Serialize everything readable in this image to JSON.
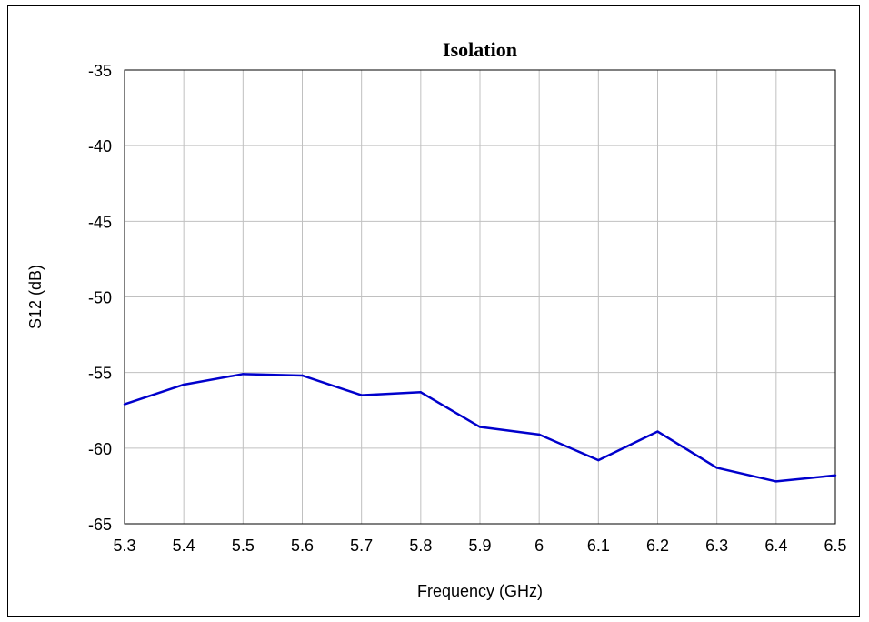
{
  "chart_data": {
    "type": "line",
    "title": "Isolation",
    "xlabel": "Frequency (GHz)",
    "ylabel": "S12 (dB)",
    "xlim": [
      5.3,
      6.5
    ],
    "ylim": [
      -65,
      -35
    ],
    "grid": true,
    "x_ticks": [
      "5.3",
      "5.4",
      "5.5",
      "5.6",
      "5.7",
      "5.8",
      "5.9",
      "6",
      "6.1",
      "6.2",
      "6.3",
      "6.4",
      "6.5"
    ],
    "y_ticks": [
      "-35",
      "-40",
      "-45",
      "-50",
      "-55",
      "-60",
      "-65"
    ],
    "series": [
      {
        "color": "#0000cc",
        "x": [
          5.3,
          5.4,
          5.5,
          5.6,
          5.7,
          5.8,
          5.9,
          6.0,
          6.1,
          6.2,
          6.3,
          6.4,
          6.5
        ],
        "y": [
          -57.1,
          -55.8,
          -55.1,
          -55.2,
          -56.5,
          -56.3,
          -58.6,
          -59.1,
          -60.8,
          -58.9,
          -61.3,
          -62.2,
          -61.8
        ]
      }
    ]
  }
}
